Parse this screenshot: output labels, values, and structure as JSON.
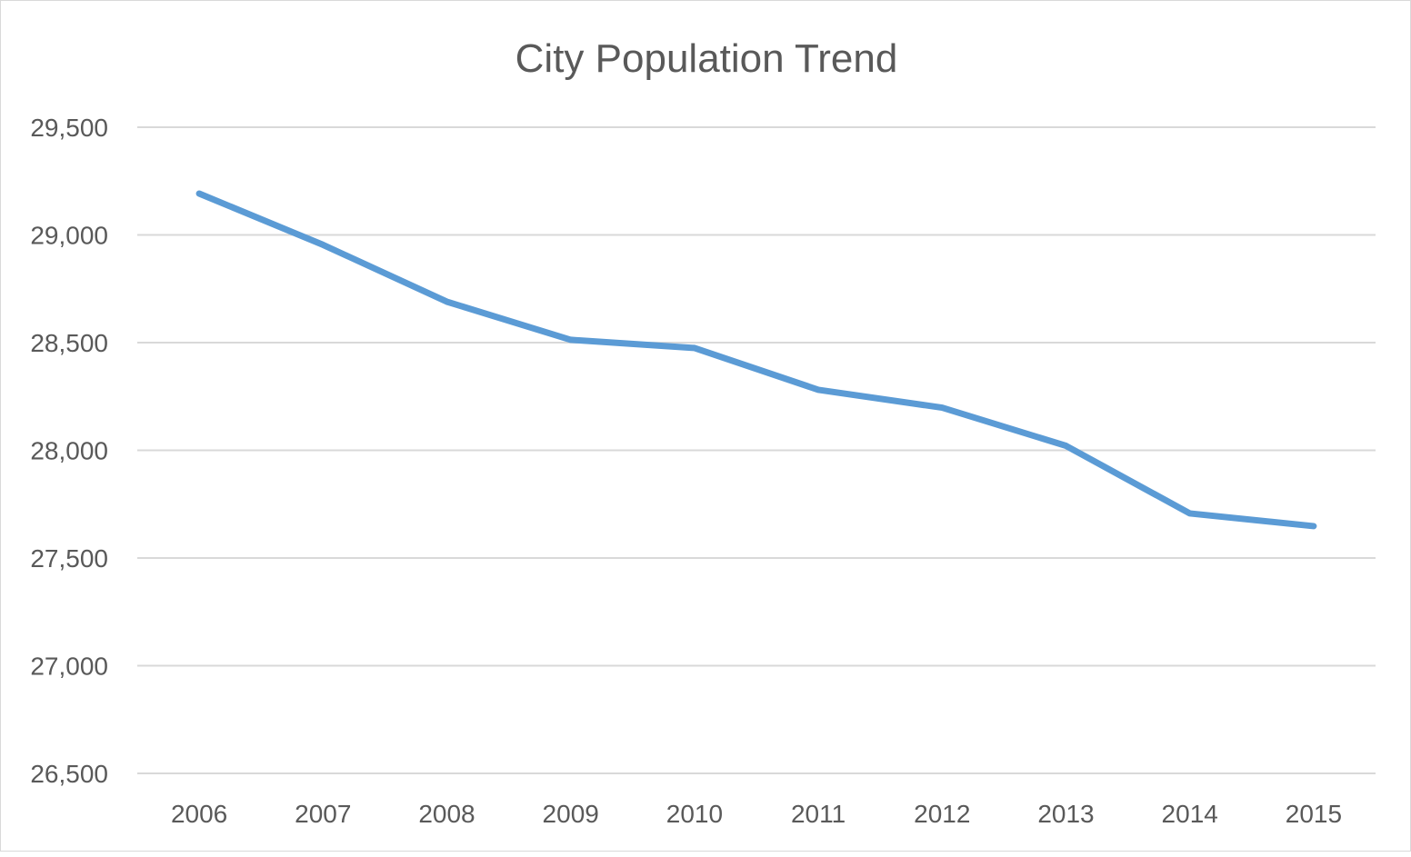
{
  "chart_data": {
    "type": "line",
    "title": "City Population Trend",
    "xlabel": "",
    "ylabel": "",
    "categories": [
      "2006",
      "2007",
      "2008",
      "2009",
      "2010",
      "2011",
      "2012",
      "2013",
      "2014",
      "2015"
    ],
    "series": [
      {
        "values": [
          29192,
          28954,
          28690,
          28513,
          28475,
          28281,
          28198,
          28021,
          27707,
          27648
        ],
        "color": "#5b9bd5"
      }
    ],
    "ylim": [
      26500,
      29500
    ],
    "yticks": [
      26500,
      27000,
      27500,
      28000,
      28500,
      29000,
      29500
    ],
    "ytick_labels": [
      "26,500",
      "27,000",
      "27,500",
      "28,000",
      "28,500",
      "29,000",
      "29,500"
    ],
    "grid": true,
    "legend": "none",
    "gridline_color": "#d9d9d9",
    "text_color": "#595959"
  }
}
